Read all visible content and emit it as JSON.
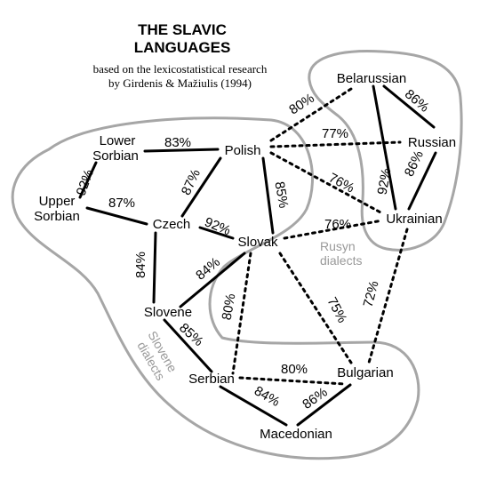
{
  "title": {
    "line1": "THE SLAVIC",
    "line2": "LANGUAGES"
  },
  "subtitle": {
    "line1": "based on the lexicostatistical research",
    "line2": "by Girdenis & Mažiulis (1994)"
  },
  "colors": {
    "lines": "#000000",
    "outline": "#a6a6a6",
    "region_label": "#999999"
  },
  "languages": {
    "lower_sorbian": [
      "Lower",
      "Sorbian"
    ],
    "upper_sorbian": [
      "Upper",
      "Sorbian"
    ],
    "polish": "Polish",
    "czech": "Czech",
    "slovak": "Slovak",
    "slovene": "Slovene",
    "serbian": "Serbian",
    "macedonian": "Macedonian",
    "bulgarian": "Bulgarian",
    "ukrainian": "Ukrainian",
    "russian": "Russian",
    "belarussian": "Belarussian"
  },
  "regions": {
    "rusyn": [
      "Rusyn",
      "dialects"
    ],
    "slovene": [
      "Slovene",
      "dialects"
    ]
  },
  "links": [
    {
      "from": "Lower Sorbian",
      "to": "Polish",
      "similarity": "83%",
      "style": "solid"
    },
    {
      "from": "Lower Sorbian",
      "to": "Upper Sorbian",
      "similarity": "92%",
      "style": "solid"
    },
    {
      "from": "Upper Sorbian",
      "to": "Czech",
      "similarity": "87%",
      "style": "solid"
    },
    {
      "from": "Polish",
      "to": "Czech",
      "similarity": "87%",
      "style": "solid"
    },
    {
      "from": "Polish",
      "to": "Slovak",
      "similarity": "85%",
      "style": "solid"
    },
    {
      "from": "Czech",
      "to": "Slovak",
      "similarity": "92%",
      "style": "solid"
    },
    {
      "from": "Czech",
      "to": "Slovene",
      "similarity": "84%",
      "style": "solid"
    },
    {
      "from": "Slovak",
      "to": "Slovene",
      "similarity": "84%",
      "style": "solid"
    },
    {
      "from": "Slovene",
      "to": "Serbian",
      "similarity": "85%",
      "style": "solid"
    },
    {
      "from": "Serbian",
      "to": "Macedonian",
      "similarity": "84%",
      "style": "solid"
    },
    {
      "from": "Macedonian",
      "to": "Bulgarian",
      "similarity": "86%",
      "style": "solid"
    },
    {
      "from": "Belarussian",
      "to": "Russian",
      "similarity": "86%",
      "style": "solid"
    },
    {
      "from": "Belarussian",
      "to": "Ukrainian",
      "similarity": "92%",
      "style": "solid"
    },
    {
      "from": "Russian",
      "to": "Ukrainian",
      "similarity": "86%",
      "style": "solid"
    },
    {
      "from": "Polish",
      "to": "Belarussian",
      "similarity": "80%",
      "style": "dotted"
    },
    {
      "from": "Polish",
      "to": "Russian",
      "similarity": "77%",
      "style": "dotted"
    },
    {
      "from": "Polish",
      "to": "Ukrainian",
      "similarity": "76%",
      "style": "dotted"
    },
    {
      "from": "Slovak",
      "to": "Ukrainian",
      "similarity": "76%",
      "style": "dotted"
    },
    {
      "from": "Slovak",
      "to": "Serbian",
      "similarity": "80%",
      "style": "dotted"
    },
    {
      "from": "Slovak",
      "to": "Bulgarian",
      "similarity": "75%",
      "style": "dotted"
    },
    {
      "from": "Serbian",
      "to": "Bulgarian",
      "similarity": "80%",
      "style": "dotted"
    },
    {
      "from": "Ukrainian",
      "to": "Bulgarian",
      "similarity": "72%",
      "style": "dotted"
    }
  ]
}
